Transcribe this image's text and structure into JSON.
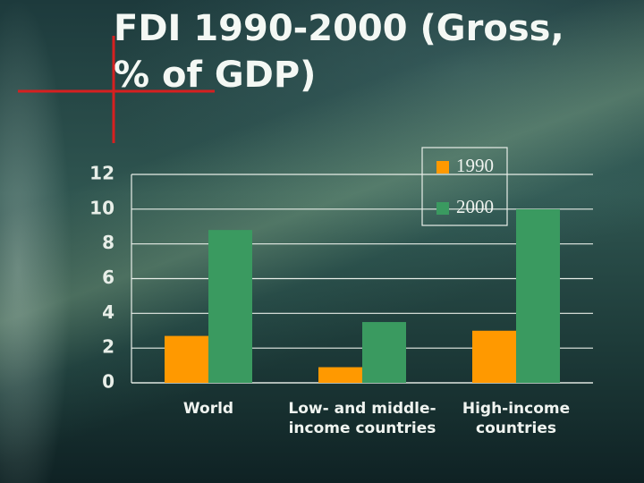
{
  "chart_data": {
    "type": "bar",
    "title": "FDI 1990-2000 (Gross, % of GDP)",
    "categories": [
      "World",
      "Low- and middle-income countries",
      "High-income countries"
    ],
    "series": [
      {
        "name": "1990",
        "color": "#ff9900",
        "values": [
          2.7,
          0.9,
          3.0
        ]
      },
      {
        "name": "2000",
        "color": "#3a9a60",
        "values": [
          8.8,
          3.5,
          10.0
        ]
      }
    ],
    "ylim": [
      0,
      12
    ],
    "yticks": [
      0,
      2,
      4,
      6,
      8,
      10,
      12
    ],
    "grid": true,
    "legend": "upper right"
  }
}
